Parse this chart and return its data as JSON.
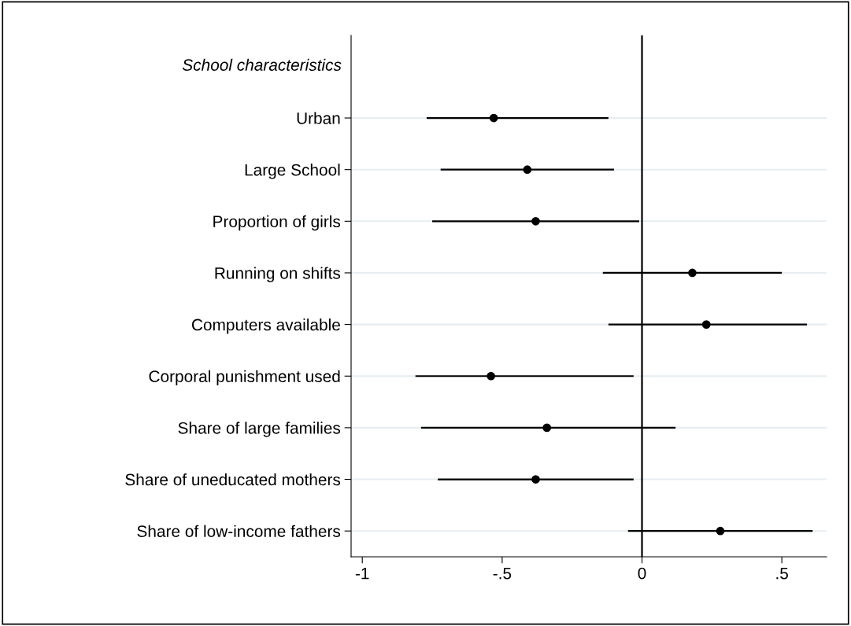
{
  "chart_data": {
    "type": "scatter",
    "orientation": "horizontal",
    "annotations": [
      "School characteristics"
    ],
    "categories": [
      "Urban",
      "Large School",
      "Proportion of girls",
      "Running on shifts",
      "Computers available",
      "Corporal punishment used",
      "Share of large families",
      "Share of uneducated mothers",
      "Share of low-income fathers"
    ],
    "color": "#000000",
    "values": [
      -0.53,
      -0.41,
      -0.38,
      0.18,
      0.23,
      -0.54,
      -0.34,
      -0.38,
      0.28
    ],
    "errors": [
      [
        -0.77,
        -0.12
      ],
      [
        -0.72,
        -0.1
      ],
      [
        -0.75,
        -0.01
      ],
      [
        -0.14,
        0.5
      ],
      [
        -0.12,
        0.59
      ],
      [
        -0.81,
        -0.03
      ],
      [
        -0.79,
        0.12
      ],
      [
        -0.73,
        -0.03
      ],
      [
        -0.05,
        0.61
      ]
    ],
    "xlim": [
      -1.04,
      0.66
    ],
    "xticks": [
      {
        "value": -1,
        "label": "-1"
      },
      {
        "value": -0.5,
        "label": "-.5"
      },
      {
        "value": 0,
        "label": "0"
      },
      {
        "value": 0.5,
        "label": ".5"
      }
    ],
    "ref_lines": [
      {
        "axis": "x",
        "value": 0,
        "color": "#000000"
      }
    ],
    "grid": "y",
    "marker": "circle"
  }
}
